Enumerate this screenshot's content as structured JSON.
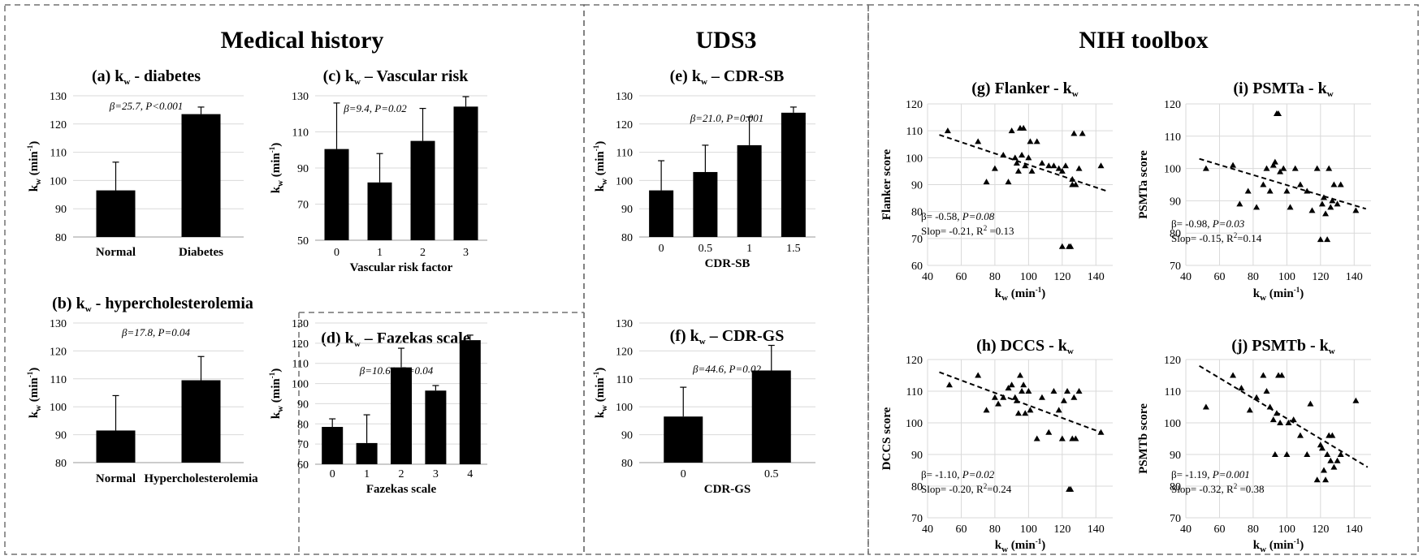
{
  "sections": [
    "Medical history",
    "UDS3",
    "NIH toolbox"
  ],
  "chart_data": [
    {
      "id": "a",
      "type": "bar",
      "title_prefix": "(a) k",
      "title_sub": "w",
      "title_suffix": " - diabetes",
      "categories": [
        "Normal",
        "Diabetes"
      ],
      "values": [
        96.5,
        123.5
      ],
      "errors": [
        10,
        2.5
      ],
      "ylim": [
        80,
        130
      ],
      "yticks": [
        80,
        90,
        100,
        110,
        120,
        130
      ],
      "ylabel": "k",
      "ylabel_sub": "w",
      "ylabel_unit": " (min",
      "ylabel_sup": "-1",
      "ylabel_close": ")",
      "xlabel": "",
      "stat_beta": "β=25.7, ",
      "stat_p": "P<0.001"
    },
    {
      "id": "b",
      "type": "bar",
      "title_prefix": "(b) k",
      "title_sub": "w",
      "title_suffix": " - hypercholesterolemia",
      "categories": [
        "Normal",
        "Hypercholesterolemia"
      ],
      "values": [
        91.5,
        109.5
      ],
      "errors": [
        12.5,
        8.5
      ],
      "ylim": [
        80,
        130
      ],
      "yticks": [
        80,
        90,
        100,
        110,
        120,
        130
      ],
      "ylabel": "k",
      "ylabel_sub": "w",
      "ylabel_unit": " (min",
      "ylabel_sup": "-1",
      "ylabel_close": ")",
      "xlabel": "",
      "stat_beta": "β=17.8, ",
      "stat_p": "P=0.04"
    },
    {
      "id": "c",
      "type": "bar",
      "title_prefix": "(c) k",
      "title_sub": "w",
      "title_suffix": " – Vascular risk",
      "categories": [
        "0",
        "1",
        "2",
        "3"
      ],
      "values": [
        100.5,
        82,
        105,
        124
      ],
      "errors": [
        25.5,
        16,
        18,
        5.5
      ],
      "ylim": [
        50,
        130
      ],
      "yticks": [
        50,
        70,
        90,
        110,
        130
      ],
      "ylabel": "k",
      "ylabel_sub": "w",
      "ylabel_unit": " (min",
      "ylabel_sup": "-1",
      "ylabel_close": ")",
      "xlabel": "Vascular risk factor",
      "stat_beta": "β=9.4, ",
      "stat_p": "P=0.02"
    },
    {
      "id": "d",
      "type": "bar",
      "title_prefix": "(d) k",
      "title_sub": "w",
      "title_suffix": " – Fazekas scale",
      "categories": [
        "0",
        "1",
        "2",
        "3",
        "4"
      ],
      "values": [
        78.5,
        70.5,
        108,
        96.5,
        121.5
      ],
      "errors": [
        4,
        14,
        9.5,
        2.5,
        2.5
      ],
      "ylim": [
        60,
        130
      ],
      "yticks": [
        60,
        70,
        80,
        90,
        100,
        110,
        120,
        130
      ],
      "ylabel": "k",
      "ylabel_sub": "w",
      "ylabel_unit": " (min",
      "ylabel_sup": "-1",
      "ylabel_close": ")",
      "xlabel": "Fazekas scale",
      "stat_beta": "β=10.61, ",
      "stat_p": "P=0.04"
    },
    {
      "id": "e",
      "type": "bar",
      "title_prefix": "(e) k",
      "title_sub": "w",
      "title_suffix": " – CDR-SB",
      "categories": [
        "0",
        "0.5",
        "1",
        "1.5"
      ],
      "values": [
        96.5,
        103,
        112.5,
        124
      ],
      "errors": [
        10.5,
        9.5,
        10,
        2
      ],
      "ylim": [
        80,
        130
      ],
      "yticks": [
        80,
        90,
        100,
        110,
        120,
        130
      ],
      "ylabel": "k",
      "ylabel_sub": "w",
      "ylabel_unit": " (min",
      "ylabel_sup": "-1",
      "ylabel_close": ")",
      "xlabel": "CDR-SB",
      "stat_beta": "β=21.0, ",
      "stat_p": "P=0.001"
    },
    {
      "id": "f",
      "type": "bar",
      "title_prefix": "(f) k",
      "title_sub": "w",
      "title_suffix": " – CDR-GS",
      "categories": [
        "0",
        "0.5"
      ],
      "values": [
        96.5,
        113
      ],
      "errors": [
        10.5,
        9
      ],
      "ylim": [
        80,
        130
      ],
      "yticks": [
        80,
        90,
        100,
        110,
        120,
        130
      ],
      "ylabel": "k",
      "ylabel_sub": "w",
      "ylabel_unit": " (min",
      "ylabel_sup": "-1",
      "ylabel_close": ")",
      "xlabel": "CDR-GS",
      "stat_beta": "β=44.6, ",
      "stat_p": "P=0.02"
    },
    {
      "id": "g",
      "type": "scatter",
      "title_prefix": "(g) Flanker - k",
      "title_sub": "w",
      "title_suffix": "",
      "xlim": [
        40,
        150
      ],
      "xticks": [
        40,
        60,
        80,
        100,
        120,
        140
      ],
      "ylim": [
        60,
        120
      ],
      "yticks": [
        60,
        70,
        80,
        90,
        100,
        110,
        120
      ],
      "xlabel": "k",
      "xlabel_sub": "w",
      "xlabel_unit": " (min",
      "xlabel_sup": "-1",
      "xlabel_close": ")",
      "ylabel": "Flanker score",
      "trend": [
        [
          47,
          108.5
        ],
        [
          147,
          87.5
        ]
      ],
      "stat1": "β= -0.58, ",
      "stat1_p": "P=0.08",
      "stat2": "Slop= -0.21, R",
      "stat2_sup": "2",
      "stat2_end": " =0.13",
      "points": [
        [
          52,
          110
        ],
        [
          70,
          106
        ],
        [
          75,
          91
        ],
        [
          80,
          96
        ],
        [
          85,
          101
        ],
        [
          88,
          91
        ],
        [
          90,
          110
        ],
        [
          92,
          100
        ],
        [
          93,
          98
        ],
        [
          94,
          95
        ],
        [
          95,
          111
        ],
        [
          96,
          101
        ],
        [
          97,
          111
        ],
        [
          98,
          97
        ],
        [
          100,
          100
        ],
        [
          101,
          106
        ],
        [
          102,
          95
        ],
        [
          105,
          106
        ],
        [
          108,
          98
        ],
        [
          112,
          97
        ],
        [
          115,
          97
        ],
        [
          118,
          96
        ],
        [
          120,
          95
        ],
        [
          120,
          67
        ],
        [
          122,
          97
        ],
        [
          124,
          67
        ],
        [
          125,
          67
        ],
        [
          126,
          90
        ],
        [
          126,
          92
        ],
        [
          127,
          109
        ],
        [
          128,
          90
        ],
        [
          130,
          96
        ],
        [
          132,
          109
        ],
        [
          143,
          97
        ]
      ]
    },
    {
      "id": "h",
      "type": "scatter",
      "title_prefix": "(h) DCCS - k",
      "title_sub": "w",
      "title_suffix": "",
      "xlim": [
        40,
        150
      ],
      "xticks": [
        40,
        60,
        80,
        100,
        120,
        140
      ],
      "ylim": [
        70,
        120
      ],
      "yticks": [
        70,
        80,
        90,
        100,
        110,
        120
      ],
      "xlabel": "k",
      "xlabel_sub": "w",
      "xlabel_unit": " (min",
      "xlabel_sup": "-1",
      "xlabel_close": ")",
      "ylabel": "DCCS score",
      "trend": [
        [
          47,
          116
        ],
        [
          143,
          97
        ]
      ],
      "stat1": "β= -1.10, ",
      "stat1_p": "P=0.02",
      "stat2": "Slop= -0.20, R",
      "stat2_sup": "2",
      "stat2_end": "=0.24",
      "points": [
        [
          53,
          112
        ],
        [
          70,
          115
        ],
        [
          75,
          104
        ],
        [
          80,
          108
        ],
        [
          82,
          106
        ],
        [
          85,
          108
        ],
        [
          88,
          111
        ],
        [
          90,
          112
        ],
        [
          92,
          108
        ],
        [
          93,
          107
        ],
        [
          94,
          103
        ],
        [
          95,
          115
        ],
        [
          96,
          110
        ],
        [
          97,
          112
        ],
        [
          98,
          103
        ],
        [
          100,
          110
        ],
        [
          101,
          104
        ],
        [
          105,
          95
        ],
        [
          108,
          108
        ],
        [
          112,
          97
        ],
        [
          115,
          110
        ],
        [
          118,
          104
        ],
        [
          120,
          95
        ],
        [
          121,
          107
        ],
        [
          123,
          110
        ],
        [
          124,
          79
        ],
        [
          125,
          79
        ],
        [
          126,
          95
        ],
        [
          127,
          108
        ],
        [
          128,
          95
        ],
        [
          130,
          110
        ],
        [
          143,
          97
        ]
      ]
    },
    {
      "id": "i",
      "type": "scatter",
      "title_prefix": "(i) PSMTa - k",
      "title_sub": "w",
      "title_suffix": "",
      "xlim": [
        40,
        150
      ],
      "xticks": [
        40,
        60,
        80,
        100,
        120,
        140
      ],
      "ylim": [
        70,
        120
      ],
      "yticks": [
        70,
        80,
        90,
        100,
        110,
        120
      ],
      "xlabel": "k",
      "xlabel_sub": "w",
      "xlabel_unit": " (min",
      "xlabel_sup": "-1",
      "xlabel_close": ")",
      "ylabel": "PSMTa score",
      "trend": [
        [
          48,
          103
        ],
        [
          147,
          87.5
        ]
      ],
      "stat1": "β= -0.98, ",
      "stat1_p": "P=0.03",
      "stat2": "Slop= -0.15, R",
      "stat2_sup": "2",
      "stat2_end": "=0.14",
      "points": [
        [
          52,
          100
        ],
        [
          68,
          101
        ],
        [
          72,
          89
        ],
        [
          77,
          93
        ],
        [
          82,
          88
        ],
        [
          86,
          95
        ],
        [
          88,
          100
        ],
        [
          90,
          93
        ],
        [
          92,
          101
        ],
        [
          93,
          102
        ],
        [
          94,
          117
        ],
        [
          95,
          117
        ],
        [
          96,
          99
        ],
        [
          98,
          100
        ],
        [
          100,
          93
        ],
        [
          102,
          88
        ],
        [
          105,
          100
        ],
        [
          108,
          95
        ],
        [
          112,
          93
        ],
        [
          115,
          87
        ],
        [
          118,
          100
        ],
        [
          120,
          78
        ],
        [
          121,
          89
        ],
        [
          122,
          91
        ],
        [
          123,
          86
        ],
        [
          124,
          78
        ],
        [
          125,
          100
        ],
        [
          126,
          88
        ],
        [
          127,
          90
        ],
        [
          128,
          95
        ],
        [
          130,
          89
        ],
        [
          132,
          95
        ],
        [
          141,
          87
        ]
      ]
    },
    {
      "id": "j",
      "type": "scatter",
      "title_prefix": "(j) PSMTb - k",
      "title_sub": "w",
      "title_suffix": "",
      "xlim": [
        40,
        150
      ],
      "xticks": [
        40,
        60,
        80,
        100,
        120,
        140
      ],
      "ylim": [
        70,
        120
      ],
      "yticks": [
        70,
        80,
        90,
        100,
        110,
        120
      ],
      "xlabel": "k",
      "xlabel_sub": "w",
      "xlabel_unit": " (min",
      "xlabel_sup": "-1",
      "xlabel_close": ")",
      "ylabel": "PSMTb score",
      "trend": [
        [
          48,
          118
        ],
        [
          148,
          86
        ]
      ],
      "stat1": "β= -1.19, ",
      "stat1_p": "P=0.001",
      "stat2": "Slop= -0.32, R",
      "stat2_sup": "2",
      "stat2_end": " =0.38",
      "points": [
        [
          52,
          105
        ],
        [
          68,
          115
        ],
        [
          73,
          111
        ],
        [
          78,
          104
        ],
        [
          82,
          108
        ],
        [
          86,
          115
        ],
        [
          88,
          110
        ],
        [
          90,
          105
        ],
        [
          92,
          101
        ],
        [
          93,
          90
        ],
        [
          94,
          103
        ],
        [
          95,
          115
        ],
        [
          96,
          100
        ],
        [
          97,
          115
        ],
        [
          100,
          90
        ],
        [
          101,
          100
        ],
        [
          104,
          101
        ],
        [
          108,
          96
        ],
        [
          112,
          90
        ],
        [
          114,
          106
        ],
        [
          118,
          82
        ],
        [
          120,
          93
        ],
        [
          121,
          92
        ],
        [
          122,
          85
        ],
        [
          123,
          82
        ],
        [
          124,
          90
        ],
        [
          125,
          96
        ],
        [
          126,
          88
        ],
        [
          127,
          96
        ],
        [
          128,
          86
        ],
        [
          130,
          88
        ],
        [
          132,
          90
        ],
        [
          141,
          107
        ]
      ]
    }
  ]
}
